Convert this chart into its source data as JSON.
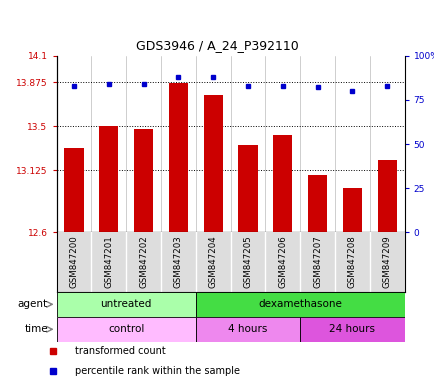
{
  "title": "GDS3946 / A_24_P392110",
  "samples": [
    "GSM847200",
    "GSM847201",
    "GSM847202",
    "GSM847203",
    "GSM847204",
    "GSM847205",
    "GSM847206",
    "GSM847207",
    "GSM847208",
    "GSM847209"
  ],
  "bar_values": [
    13.32,
    13.5,
    13.48,
    13.87,
    13.77,
    13.34,
    13.43,
    13.09,
    12.98,
    13.21
  ],
  "percentile_values": [
    83,
    84,
    84,
    88,
    88,
    83,
    83,
    82,
    80,
    83
  ],
  "bar_color": "#cc0000",
  "dot_color": "#0000cc",
  "ylim_left": [
    12.6,
    14.1
  ],
  "ylim_right": [
    0,
    100
  ],
  "yticks_left": [
    12.6,
    13.125,
    13.5,
    13.875,
    14.1
  ],
  "ytick_labels_left": [
    "12.6",
    "13.125",
    "13.5",
    "13.875",
    "14.1"
  ],
  "yticks_right": [
    0,
    25,
    50,
    75,
    100
  ],
  "ytick_labels_right": [
    "0",
    "25",
    "50",
    "75",
    "100%"
  ],
  "hlines": [
    13.125,
    13.5,
    13.875
  ],
  "agent_groups": [
    {
      "label": "untreated",
      "start": 0,
      "end": 4,
      "color": "#aaffaa"
    },
    {
      "label": "dexamethasone",
      "start": 4,
      "end": 10,
      "color": "#44dd44"
    }
  ],
  "time_groups": [
    {
      "label": "control",
      "start": 0,
      "end": 4,
      "color": "#ffbbff"
    },
    {
      "label": "4 hours",
      "start": 4,
      "end": 7,
      "color": "#ee88ee"
    },
    {
      "label": "24 hours",
      "start": 7,
      "end": 10,
      "color": "#dd55dd"
    }
  ],
  "legend_items": [
    {
      "label": "transformed count",
      "color": "#cc0000"
    },
    {
      "label": "percentile rank within the sample",
      "color": "#0000cc"
    }
  ],
  "bar_width": 0.55,
  "left_label_color": "#cc0000",
  "right_label_color": "#0000cc",
  "bg_color": "#dddddd",
  "plot_bg": "#ffffff"
}
